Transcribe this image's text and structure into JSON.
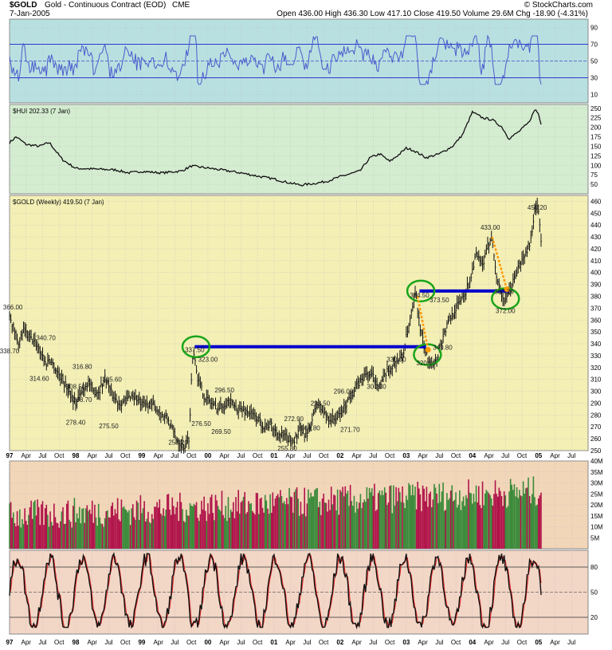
{
  "header": {
    "symbol": "$GOLD",
    "name": "Gold - Continuous Contract (EOD)",
    "exchange": "CME",
    "date": "7-Jan-2005",
    "source": "© StockCharts.com",
    "quote": "Open 436.00  High 436.30  Low 417.10  Close 419.50  Volume 29.6M  Chg -18.90 (-4.31%)"
  },
  "colors": {
    "rsi_bg": "#b9e0e0",
    "hui_bg": "#d4ecd0",
    "price_bg": "#f3efb5",
    "volume_bg": "#f2d6b8",
    "stoch_bg": "#f2d6c6",
    "rsi_line": "#4a5ccd",
    "level_line": "#0000cc",
    "circle": "#1aa51a",
    "arrow": "#ff9900",
    "vol_up": "#3a8a3a",
    "vol_down": "#b0134a"
  },
  "x_axis": {
    "labels": [
      "97",
      "Apr",
      "Jul",
      "Oct",
      "98",
      "Apr",
      "Jul",
      "Oct",
      "99",
      "Apr",
      "Jul",
      "Oct",
      "00",
      "Apr",
      "Jul",
      "Oct",
      "01",
      "Apr",
      "Jul",
      "Oct",
      "02",
      "Apr",
      "Jul",
      "Oct",
      "03",
      "Apr",
      "Jul",
      "Oct",
      "04",
      "Apr",
      "Jul",
      "Oct",
      "05",
      "Apr",
      "Jul"
    ]
  },
  "chart_data": [
    {
      "type": "line",
      "panel": "rsi",
      "title": "",
      "ylim": [
        0,
        100
      ],
      "yticks": [
        "90",
        "70",
        "50",
        "30",
        "10"
      ],
      "reference_lines": [
        70,
        50,
        30
      ]
    },
    {
      "type": "line",
      "panel": "hui",
      "title": "$HUI 202.33 (7 Jan)",
      "ylim": [
        25,
        260
      ],
      "yticks": [
        "250",
        "225",
        "200",
        "175",
        "150",
        "125",
        "100",
        "75",
        "50"
      ],
      "series": [
        {
          "name": "$HUI",
          "values": [
            [
              1997.0,
              160
            ],
            [
              1997.1,
              175
            ],
            [
              1997.25,
              155
            ],
            [
              1997.45,
              150
            ],
            [
              1997.6,
              160
            ],
            [
              1997.8,
              115
            ],
            [
              1998.0,
              92
            ],
            [
              1998.3,
              90
            ],
            [
              1998.6,
              88
            ],
            [
              1998.8,
              80
            ],
            [
              1999.0,
              84
            ],
            [
              1999.3,
              80
            ],
            [
              1999.6,
              85
            ],
            [
              1999.75,
              98
            ],
            [
              1999.9,
              95
            ],
            [
              2000.2,
              88
            ],
            [
              2000.5,
              80
            ],
            [
              2000.8,
              70
            ],
            [
              2001.0,
              64
            ],
            [
              2001.2,
              55
            ],
            [
              2001.4,
              48
            ],
            [
              2001.6,
              52
            ],
            [
              2001.8,
              58
            ],
            [
              2002.0,
              70
            ],
            [
              2002.3,
              85
            ],
            [
              2002.45,
              120
            ],
            [
              2002.6,
              130
            ],
            [
              2002.75,
              110
            ],
            [
              2002.9,
              130
            ],
            [
              2003.0,
              145
            ],
            [
              2003.1,
              140
            ],
            [
              2003.3,
              120
            ],
            [
              2003.5,
              130
            ],
            [
              2003.7,
              150
            ],
            [
              2003.85,
              180
            ],
            [
              2004.0,
              240
            ],
            [
              2004.15,
              225
            ],
            [
              2004.3,
              220
            ],
            [
              2004.45,
              200
            ],
            [
              2004.55,
              170
            ],
            [
              2004.7,
              188
            ],
            [
              2004.85,
              212
            ],
            [
              2004.95,
              248
            ],
            [
              2005.0,
              235
            ],
            [
              2005.05,
              202.33
            ]
          ]
        }
      ]
    },
    {
      "type": "line",
      "panel": "price",
      "title": "$GOLD (Weekly) 419.50 (7 Jan)",
      "ylim": [
        250,
        465
      ],
      "yticks": [
        "460",
        "450",
        "440",
        "430",
        "420",
        "410",
        "400",
        "390",
        "380",
        "370",
        "360",
        "350",
        "340",
        "330",
        "320",
        "310",
        "300",
        "290",
        "280",
        "270",
        "260",
        "250"
      ],
      "series": [
        {
          "name": "$GOLD",
          "values": [
            [
              1997.0,
              366
            ],
            [
              1997.05,
              355
            ],
            [
              1997.15,
              340
            ],
            [
              1997.2,
              352
            ],
            [
              1997.3,
              345
            ],
            [
              1997.4,
              340.7
            ],
            [
              1997.5,
              330
            ],
            [
              1997.55,
              322
            ],
            [
              1997.6,
              328
            ],
            [
              1997.7,
              318
            ],
            [
              1997.8,
              310
            ],
            [
              1997.9,
              300
            ],
            [
              1998.0,
              290
            ],
            [
              1998.1,
              300
            ],
            [
              1998.2,
              308.5
            ],
            [
              1998.25,
              300
            ],
            [
              1998.35,
              300
            ],
            [
              1998.45,
              312
            ],
            [
              1998.55,
              297
            ],
            [
              1998.65,
              290
            ],
            [
              1998.75,
              292
            ],
            [
              1998.85,
              297
            ],
            [
              1998.95,
              292
            ],
            [
              1999.0,
              288
            ],
            [
              1999.1,
              290
            ],
            [
              1999.2,
              287
            ],
            [
              1999.3,
              280
            ],
            [
              1999.4,
              276
            ],
            [
              1999.5,
              262
            ],
            [
              1999.6,
              255
            ],
            [
              1999.65,
              253.2
            ],
            [
              1999.72,
              262
            ],
            [
              1999.75,
              310
            ],
            [
              1999.78,
              337.5
            ],
            [
              1999.85,
              310
            ],
            [
              1999.95,
              295
            ],
            [
              2000.05,
              290
            ],
            [
              2000.15,
              285
            ],
            [
              2000.3,
              292
            ],
            [
              2000.45,
              285
            ],
            [
              2000.6,
              283
            ],
            [
              2000.75,
              277
            ],
            [
              2000.85,
              270
            ],
            [
              2000.95,
              272
            ],
            [
              2001.05,
              264
            ],
            [
              2001.15,
              262
            ],
            [
              2001.3,
              258
            ],
            [
              2001.4,
              268
            ],
            [
              2001.5,
              262
            ],
            [
              2001.65,
              290
            ],
            [
              2001.75,
              282
            ],
            [
              2001.85,
              276
            ],
            [
              2001.95,
              278
            ],
            [
              2002.05,
              285
            ],
            [
              2002.15,
              296
            ],
            [
              2002.25,
              304
            ],
            [
              2002.4,
              315
            ],
            [
              2002.5,
              312
            ],
            [
              2002.6,
              305
            ],
            [
              2002.7,
              315
            ],
            [
              2002.85,
              325
            ],
            [
              2002.95,
              330
            ],
            [
              2003.0,
              345
            ],
            [
              2003.1,
              370
            ],
            [
              2003.15,
              384.5
            ],
            [
              2003.2,
              355
            ],
            [
              2003.3,
              330
            ],
            [
              2003.35,
              325
            ],
            [
              2003.45,
              325
            ],
            [
              2003.55,
              345
            ],
            [
              2003.65,
              360
            ],
            [
              2003.8,
              375
            ],
            [
              2003.95,
              390
            ],
            [
              2004.05,
              415
            ],
            [
              2004.15,
              405
            ],
            [
              2004.25,
              425
            ],
            [
              2004.3,
              433
            ],
            [
              2004.35,
              400
            ],
            [
              2004.45,
              380
            ],
            [
              2004.5,
              375
            ],
            [
              2004.6,
              390
            ],
            [
              2004.7,
              405
            ],
            [
              2004.8,
              415
            ],
            [
              2004.9,
              430
            ],
            [
              2004.95,
              455
            ],
            [
              2004.98,
              458.2
            ],
            [
              2005.02,
              440
            ],
            [
              2005.05,
              419.5
            ]
          ]
        }
      ],
      "annotations": [
        "366.00",
        "338.70",
        "340.70",
        "314.60",
        "316.80",
        "308.50",
        "288.70",
        "278.40",
        "305.60",
        "275.50",
        "253.20",
        "337.50",
        "323.00",
        "276.50",
        "296.50",
        "269.50",
        "272.90",
        "293.50",
        "296.00",
        "255.80",
        "264.80",
        "271.70",
        "300.30",
        "330.90",
        "320.10",
        "384.50",
        "373.50",
        "340.80",
        "433.00",
        "372.00",
        "380.20",
        "458.20"
      ],
      "horizontal_levels": [
        {
          "y": 337.5,
          "x0": 1999.8,
          "x1": 2003.3
        },
        {
          "y": 384.5,
          "x0": 2003.2,
          "x1": 2004.55
        }
      ]
    },
    {
      "type": "bar",
      "panel": "volume",
      "title": "",
      "ylim": [
        0,
        40
      ],
      "yticks": [
        "40M",
        "35M",
        "30M",
        "25M",
        "20M",
        "15M",
        "10M",
        "5M"
      ]
    },
    {
      "type": "line",
      "panel": "stochastic",
      "title": "",
      "ylim": [
        0,
        100
      ],
      "yticks": [
        "80",
        "50",
        "20"
      ],
      "reference_lines": [
        80,
        50,
        20
      ]
    }
  ]
}
